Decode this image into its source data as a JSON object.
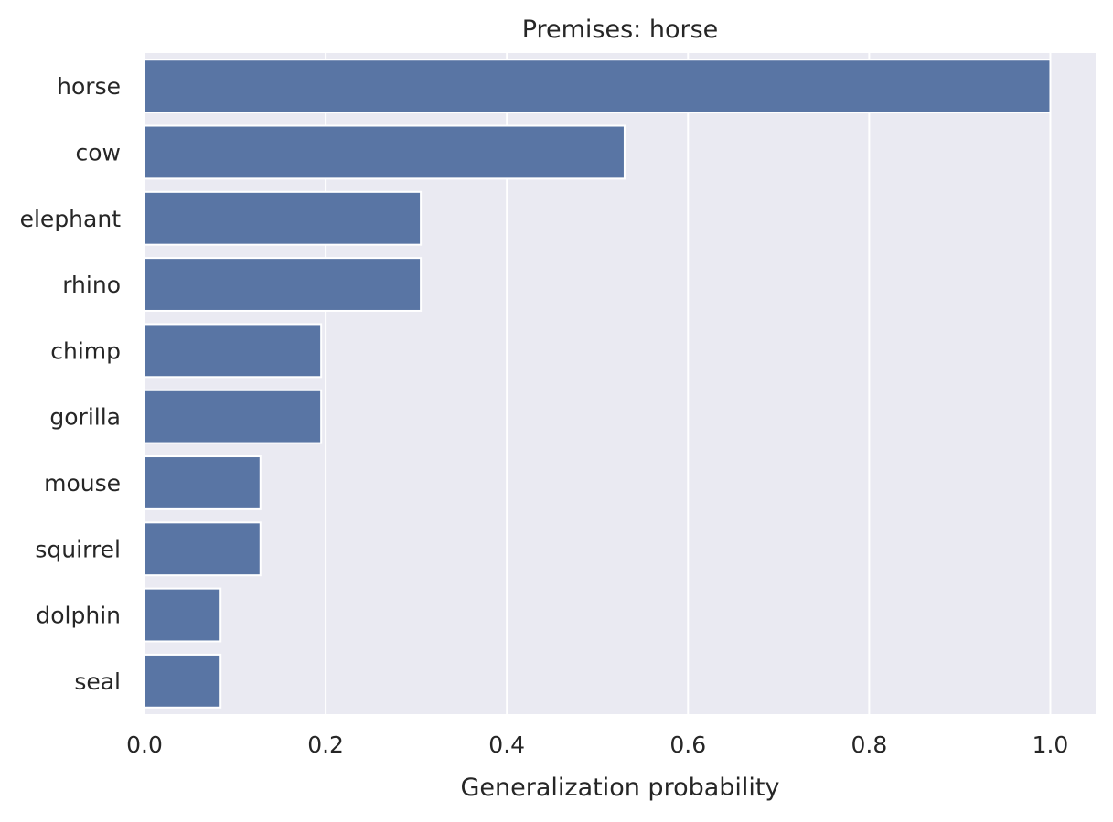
{
  "chart_data": {
    "type": "bar",
    "orientation": "horizontal",
    "title": "Premises: horse",
    "xlabel": "Generalization probability",
    "ylabel": "",
    "categories": [
      "horse",
      "cow",
      "elephant",
      "rhino",
      "chimp",
      "gorilla",
      "mouse",
      "squirrel",
      "dolphin",
      "seal"
    ],
    "values": [
      1.0,
      0.53,
      0.305,
      0.305,
      0.195,
      0.195,
      0.128,
      0.128,
      0.084,
      0.084
    ],
    "xlim": [
      0.0,
      1.05
    ],
    "xticks": [
      0.0,
      0.2,
      0.4,
      0.6,
      0.8,
      1.0
    ],
    "xtick_labels": [
      "0.0",
      "0.2",
      "0.4",
      "0.6",
      "0.8",
      "1.0"
    ],
    "grid": true,
    "bar_color": "#5975a4",
    "plot_background": "#eaeaf2",
    "grid_color": "#ffffff"
  }
}
